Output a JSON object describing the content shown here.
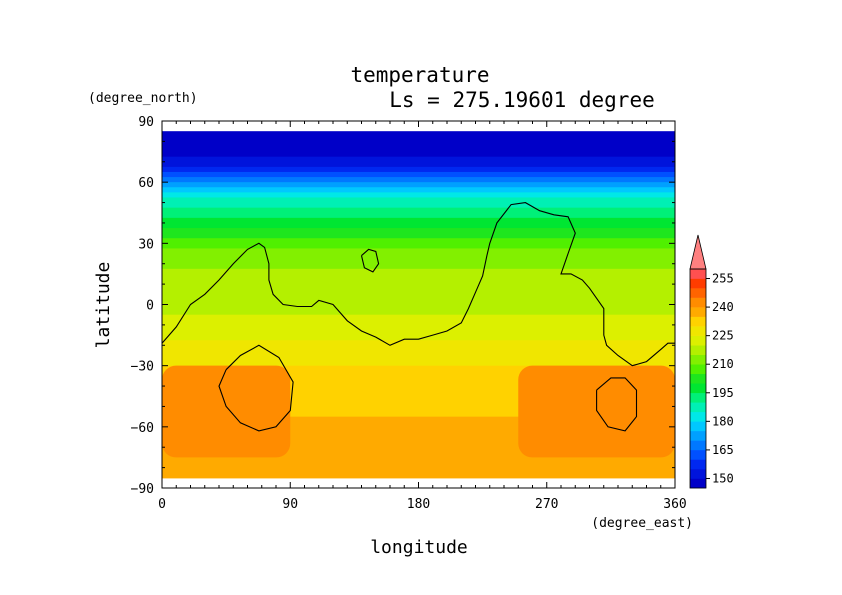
{
  "chart_data": {
    "type": "heatmap",
    "title": "temperature",
    "subtitle": "Ls = 275.19601 degree",
    "xlabel": "longitude",
    "ylabel": "latitude",
    "xunits": "(degree_east)",
    "yunits": "(degree_north)",
    "xlim": [
      0,
      360
    ],
    "ylim": [
      -90,
      90
    ],
    "data_lat_range": [
      -85,
      85
    ],
    "xticks": [
      0,
      90,
      180,
      270,
      360
    ],
    "yticks": [
      90,
      60,
      30,
      0,
      -30,
      -60,
      -90
    ],
    "colorbar": {
      "levels": [
        145,
        150,
        155,
        160,
        165,
        170,
        175,
        180,
        185,
        190,
        195,
        200,
        205,
        210,
        215,
        220,
        225,
        230,
        235,
        240,
        245,
        250,
        255,
        260
      ],
      "labels": [
        150,
        165,
        180,
        195,
        210,
        225,
        240,
        255
      ],
      "colors": [
        "#0000c8",
        "#0014dc",
        "#0028f0",
        "#0050ff",
        "#0078ff",
        "#00a0ff",
        "#00c8ff",
        "#00e8e8",
        "#00f0b4",
        "#00f078",
        "#00e632",
        "#1ee61e",
        "#50f000",
        "#82f000",
        "#b4f000",
        "#dcf000",
        "#f0e600",
        "#ffd200",
        "#ffaa00",
        "#ff8c00",
        "#ff6400",
        "#ff3c00",
        "#ff5050",
        "#ff8080"
      ],
      "extend": "max"
    },
    "zonal_profile": [
      {
        "lat": 85,
        "t": 146
      },
      {
        "lat": 75,
        "t": 148
      },
      {
        "lat": 70,
        "t": 152
      },
      {
        "lat": 65,
        "t": 160
      },
      {
        "lat": 60,
        "t": 170
      },
      {
        "lat": 55,
        "t": 180
      },
      {
        "lat": 50,
        "t": 187
      },
      {
        "lat": 45,
        "t": 193
      },
      {
        "lat": 40,
        "t": 198
      },
      {
        "lat": 35,
        "t": 203
      },
      {
        "lat": 30,
        "t": 207
      },
      {
        "lat": 25,
        "t": 211
      },
      {
        "lat": 20,
        "t": 214
      },
      {
        "lat": 15,
        "t": 216
      },
      {
        "lat": 10,
        "t": 217
      },
      {
        "lat": 5,
        "t": 218
      },
      {
        "lat": 0,
        "t": 219
      },
      {
        "lat": -5,
        "t": 220
      },
      {
        "lat": -10,
        "t": 222
      },
      {
        "lat": -15,
        "t": 224
      },
      {
        "lat": -20,
        "t": 226
      },
      {
        "lat": -25,
        "t": 228
      },
      {
        "lat": -30,
        "t": 230
      },
      {
        "lat": -35,
        "t": 232
      },
      {
        "lat": -40,
        "t": 233
      },
      {
        "lat": -50,
        "t": 234
      },
      {
        "lat": -60,
        "t": 236
      },
      {
        "lat": -70,
        "t": 238
      },
      {
        "lat": -80,
        "t": 239
      },
      {
        "lat": -85,
        "t": 240
      }
    ],
    "warm_regions": [
      {
        "lon": [
          0,
          90
        ],
        "lat": [
          -75,
          -30
        ],
        "t": 242
      },
      {
        "lon": [
          250,
          360
        ],
        "lat": [
          -75,
          -30
        ],
        "t": 242
      }
    ],
    "contours": [
      {
        "name": "topography",
        "points": [
          [
            0,
            -19
          ],
          [
            10,
            -11
          ],
          [
            20,
            0
          ],
          [
            30,
            5
          ],
          [
            40,
            12
          ],
          [
            50,
            20
          ],
          [
            60,
            27
          ],
          [
            68,
            30
          ],
          [
            72,
            28
          ],
          [
            75,
            20
          ],
          [
            75,
            12
          ],
          [
            78,
            5
          ],
          [
            85,
            0
          ],
          [
            95,
            -1
          ],
          [
            105,
            -1
          ],
          [
            110,
            2
          ],
          [
            120,
            0
          ],
          [
            130,
            -8
          ],
          [
            140,
            -13
          ],
          [
            150,
            -16
          ],
          [
            160,
            -20
          ],
          [
            170,
            -17
          ],
          [
            180,
            -17
          ],
          [
            190,
            -15
          ],
          [
            200,
            -13
          ],
          [
            210,
            -9
          ],
          [
            215,
            -2
          ],
          [
            220,
            6
          ],
          [
            225,
            14
          ],
          [
            228,
            24
          ],
          [
            230,
            30
          ],
          [
            235,
            40
          ],
          [
            245,
            49
          ],
          [
            255,
            50
          ],
          [
            265,
            46
          ],
          [
            275,
            44
          ],
          [
            285,
            43
          ],
          [
            290,
            35
          ],
          [
            285,
            25
          ],
          [
            280,
            15
          ],
          [
            287,
            15
          ],
          [
            295,
            12
          ],
          [
            300,
            8
          ],
          [
            310,
            -2
          ],
          [
            310,
            -15
          ],
          [
            312,
            -20
          ],
          [
            320,
            -25
          ],
          [
            330,
            -30
          ],
          [
            340,
            -28
          ],
          [
            350,
            -22
          ],
          [
            355,
            -19
          ],
          [
            360,
            -19
          ]
        ]
      },
      {
        "name": "island-north",
        "points": [
          [
            140,
            24
          ],
          [
            145,
            27
          ],
          [
            150,
            26
          ],
          [
            152,
            20
          ],
          [
            148,
            16
          ],
          [
            142,
            18
          ],
          [
            140,
            24
          ]
        ]
      },
      {
        "name": "basin-west",
        "points": [
          [
            45,
            -32
          ],
          [
            55,
            -25
          ],
          [
            68,
            -20
          ],
          [
            82,
            -26
          ],
          [
            92,
            -38
          ],
          [
            90,
            -52
          ],
          [
            80,
            -60
          ],
          [
            68,
            -62
          ],
          [
            55,
            -58
          ],
          [
            45,
            -50
          ],
          [
            40,
            -40
          ],
          [
            45,
            -32
          ]
        ]
      },
      {
        "name": "basin-east",
        "points": [
          [
            305,
            -42
          ],
          [
            315,
            -36
          ],
          [
            325,
            -36
          ],
          [
            333,
            -42
          ],
          [
            333,
            -55
          ],
          [
            325,
            -62
          ],
          [
            313,
            -60
          ],
          [
            305,
            -52
          ],
          [
            305,
            -42
          ]
        ]
      }
    ]
  }
}
